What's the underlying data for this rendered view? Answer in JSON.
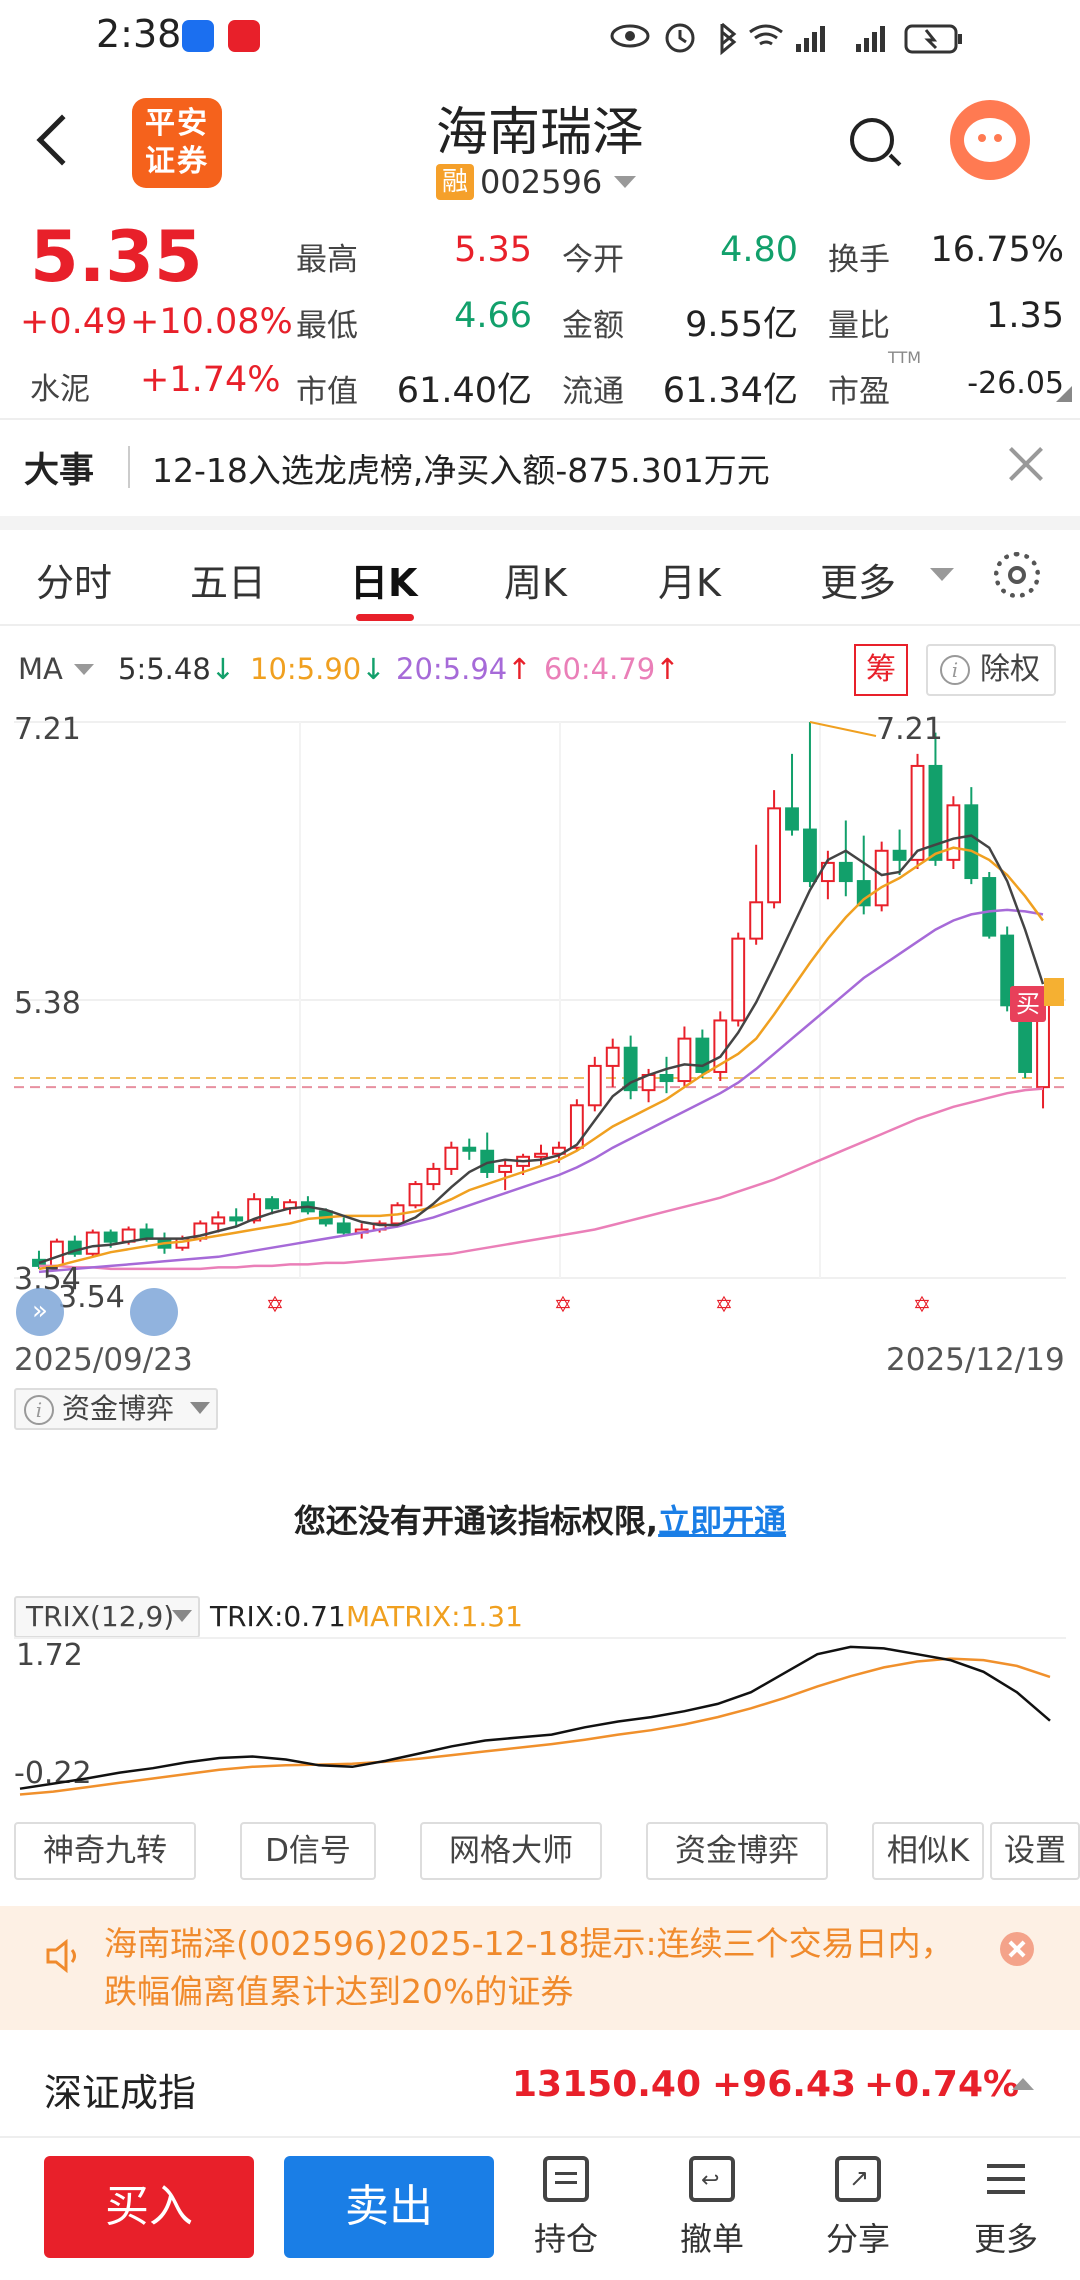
{
  "status_bar": {
    "time": "2:38"
  },
  "header": {
    "logo_line1": "平安",
    "logo_line2": "证券",
    "stock_name": "海南瑞泽",
    "margin_badge": "融",
    "stock_code": "002596"
  },
  "quote": {
    "price": "5.35",
    "change": "+0.49",
    "change_pct": "+10.08%",
    "sector_name": "水泥",
    "sector_chg": "+1.74%",
    "fields": [
      {
        "label": "最高",
        "value": "5.35",
        "color": "#e8202a"
      },
      {
        "label": "今开",
        "value": "4.80",
        "color": "#12a06b"
      },
      {
        "label": "换手",
        "value": "16.75%",
        "color": "#222222"
      },
      {
        "label": "最低",
        "value": "4.66",
        "color": "#12a06b"
      },
      {
        "label": "金额",
        "value": "9.55亿",
        "color": "#222222"
      },
      {
        "label": "量比",
        "value": "1.35",
        "color": "#222222"
      },
      {
        "label": "市值",
        "value": "61.40亿",
        "color": "#222222"
      },
      {
        "label": "流通",
        "value": "61.34亿",
        "color": "#222222"
      },
      {
        "label": "市盈",
        "value": "-26.05",
        "color": "#222222"
      }
    ],
    "pe_superscript": "TTM"
  },
  "news": {
    "tag": "大事",
    "text": "12-18入选龙虎榜,净买入额-875.301万元"
  },
  "tabs": [
    "分时",
    "五日",
    "日K",
    "周K",
    "月K",
    "更多"
  ],
  "active_tab": "日K",
  "ma_legend": {
    "label": "MA",
    "ma5": "5:5.48",
    "ma10": "10:5.90",
    "ma20": "20:5.94",
    "ma60": "60:4.79",
    "ma5_dir": "↓",
    "ma10_dir": "↓",
    "ma20_dir": "↑",
    "ma60_dir": "↑",
    "chou_label": "筹",
    "chuquan_label": "除权"
  },
  "kline": {
    "y_max_label": "7.21",
    "y_mid_label": "5.38",
    "y_min_label": "3.54",
    "high_marker": "7.21",
    "low_marker": "3.54",
    "buy_marker": "买",
    "date_start": "2025/09/23",
    "date_end": "2025/12/19"
  },
  "capital_indicator": {
    "selector": "资金博弈",
    "perm_text": "您还没有开通该指标权限,",
    "perm_link": "立即开通"
  },
  "trix": {
    "selector": "TRIX(12,9)",
    "trix_value": "TRIX:0.71",
    "matrix_value": "MATRIX:1.31",
    "y_max": "1.72",
    "y_min": "-0.22"
  },
  "feature_buttons": [
    "神奇九转",
    "D信号",
    "网格大师",
    "资金博弈",
    "相似K",
    "设置"
  ],
  "alert": {
    "text": "海南瑞泽(002596)2025-12-18提示:连续三个交易日内，跌幅偏离值累计达到20%的证券"
  },
  "index_bar": {
    "name": "深证成指",
    "value": "13150.40",
    "change": "+96.43",
    "change_pct": "+0.74%"
  },
  "bottom_nav": {
    "buy": "买入",
    "sell": "卖出",
    "items": [
      "持仓",
      "撤单",
      "分享",
      "更多"
    ]
  },
  "chart_data": {
    "type": "candlestick",
    "x_range": [
      "2025/09/23",
      "2025/12/19"
    ],
    "ylim": [
      3.54,
      7.21
    ],
    "y_ticks": [
      7.21,
      5.38,
      3.54
    ],
    "candles": [
      [
        3.66,
        3.72,
        3.6,
        3.62
      ],
      [
        3.62,
        3.8,
        3.6,
        3.78
      ],
      [
        3.78,
        3.82,
        3.68,
        3.7
      ],
      [
        3.7,
        3.86,
        3.68,
        3.84
      ],
      [
        3.84,
        3.86,
        3.74,
        3.78
      ],
      [
        3.78,
        3.88,
        3.76,
        3.86
      ],
      [
        3.86,
        3.9,
        3.78,
        3.8
      ],
      [
        3.8,
        3.84,
        3.7,
        3.74
      ],
      [
        3.74,
        3.82,
        3.72,
        3.8
      ],
      [
        3.8,
        3.92,
        3.78,
        3.9
      ],
      [
        3.9,
        3.98,
        3.84,
        3.94
      ],
      [
        3.94,
        4.0,
        3.88,
        3.92
      ],
      [
        3.92,
        4.1,
        3.9,
        4.06
      ],
      [
        4.06,
        4.08,
        3.96,
        4.0
      ],
      [
        4.0,
        4.06,
        3.96,
        4.04
      ],
      [
        4.04,
        4.08,
        3.96,
        3.98
      ],
      [
        3.98,
        4.0,
        3.88,
        3.9
      ],
      [
        3.9,
        3.94,
        3.82,
        3.84
      ],
      [
        3.84,
        3.9,
        3.8,
        3.86
      ],
      [
        3.86,
        3.92,
        3.84,
        3.9
      ],
      [
        3.9,
        4.04,
        3.88,
        4.02
      ],
      [
        4.02,
        4.18,
        4.0,
        4.16
      ],
      [
        4.16,
        4.3,
        4.12,
        4.26
      ],
      [
        4.26,
        4.44,
        4.22,
        4.4
      ],
      [
        4.4,
        4.46,
        4.32,
        4.38
      ],
      [
        4.38,
        4.5,
        4.2,
        4.24
      ],
      [
        4.24,
        4.32,
        4.12,
        4.28
      ],
      [
        4.28,
        4.36,
        4.22,
        4.34
      ],
      [
        4.34,
        4.42,
        4.28,
        4.36
      ],
      [
        4.36,
        4.44,
        4.3,
        4.4
      ],
      [
        4.4,
        4.72,
        4.38,
        4.68
      ],
      [
        4.68,
        5.0,
        4.64,
        4.94
      ],
      [
        4.94,
        5.12,
        4.8,
        5.06
      ],
      [
        5.06,
        5.14,
        4.72,
        4.78
      ],
      [
        4.78,
        4.92,
        4.7,
        4.88
      ],
      [
        4.88,
        5.0,
        4.76,
        4.84
      ],
      [
        4.84,
        5.2,
        4.8,
        5.12
      ],
      [
        5.12,
        5.18,
        4.86,
        4.9
      ],
      [
        4.9,
        5.3,
        4.84,
        5.24
      ],
      [
        5.24,
        5.82,
        5.2,
        5.78
      ],
      [
        5.78,
        6.4,
        5.74,
        6.02
      ],
      [
        6.02,
        6.76,
        5.98,
        6.64
      ],
      [
        6.64,
        7.0,
        6.46,
        6.5
      ],
      [
        6.5,
        7.21,
        6.12,
        6.16
      ],
      [
        6.16,
        6.36,
        6.04,
        6.28
      ],
      [
        6.28,
        6.56,
        6.06,
        6.16
      ],
      [
        6.16,
        6.46,
        5.94,
        6.0
      ],
      [
        6.0,
        6.42,
        5.96,
        6.36
      ],
      [
        6.36,
        6.5,
        6.2,
        6.3
      ],
      [
        6.3,
        7.0,
        6.24,
        6.92
      ],
      [
        6.92,
        7.14,
        6.26,
        6.3
      ],
      [
        6.3,
        6.72,
        6.24,
        6.66
      ],
      [
        6.66,
        6.78,
        6.14,
        6.18
      ],
      [
        6.18,
        6.22,
        5.78,
        5.8
      ],
      [
        5.8,
        5.86,
        5.3,
        5.34
      ],
      [
        5.34,
        5.4,
        4.86,
        4.9
      ],
      [
        4.8,
        5.35,
        4.66,
        5.35
      ]
    ],
    "ma5": [
      3.64,
      3.68,
      3.72,
      3.75,
      3.76,
      3.78,
      3.8,
      3.8,
      3.8,
      3.82,
      3.85,
      3.88,
      3.93,
      3.97,
      4.0,
      4.01,
      3.99,
      3.95,
      3.91,
      3.89,
      3.89,
      3.94,
      4.03,
      4.14,
      4.24,
      4.3,
      4.32,
      4.31,
      4.32,
      4.35,
      4.42,
      4.58,
      4.74,
      4.83,
      4.88,
      4.92,
      4.95,
      4.94,
      5.0,
      5.16,
      5.36,
      5.6,
      5.85,
      6.1,
      6.3,
      6.36,
      6.28,
      6.2,
      6.22,
      6.36,
      6.4,
      6.44,
      6.46,
      6.38,
      6.16,
      5.84,
      5.48
    ],
    "ma10": [
      3.6,
      3.62,
      3.65,
      3.68,
      3.71,
      3.73,
      3.75,
      3.77,
      3.78,
      3.8,
      3.82,
      3.84,
      3.86,
      3.88,
      3.9,
      3.93,
      3.94,
      3.95,
      3.95,
      3.95,
      3.96,
      3.98,
      4.01,
      4.06,
      4.12,
      4.16,
      4.2,
      4.24,
      4.28,
      4.32,
      4.38,
      4.46,
      4.54,
      4.6,
      4.66,
      4.72,
      4.8,
      4.88,
      4.95,
      5.02,
      5.12,
      5.28,
      5.45,
      5.62,
      5.78,
      5.92,
      6.04,
      6.12,
      6.18,
      6.26,
      6.34,
      6.38,
      6.36,
      6.3,
      6.2,
      6.06,
      5.9
    ],
    "ma20": [
      3.58,
      3.59,
      3.6,
      3.61,
      3.62,
      3.63,
      3.64,
      3.65,
      3.66,
      3.67,
      3.68,
      3.7,
      3.72,
      3.74,
      3.76,
      3.78,
      3.8,
      3.82,
      3.84,
      3.86,
      3.88,
      3.91,
      3.94,
      3.98,
      4.02,
      4.06,
      4.1,
      4.14,
      4.18,
      4.22,
      4.27,
      4.33,
      4.4,
      4.46,
      4.52,
      4.58,
      4.64,
      4.7,
      4.76,
      4.83,
      4.92,
      5.02,
      5.12,
      5.22,
      5.32,
      5.42,
      5.52,
      5.6,
      5.68,
      5.76,
      5.84,
      5.9,
      5.94,
      5.96,
      5.97,
      5.96,
      5.94
    ],
    "ma60": [
      3.62,
      3.62,
      3.61,
      3.61,
      3.6,
      3.6,
      3.6,
      3.6,
      3.6,
      3.6,
      3.61,
      3.61,
      3.62,
      3.62,
      3.63,
      3.63,
      3.64,
      3.64,
      3.65,
      3.66,
      3.67,
      3.68,
      3.69,
      3.7,
      3.72,
      3.74,
      3.76,
      3.78,
      3.8,
      3.82,
      3.84,
      3.86,
      3.89,
      3.92,
      3.95,
      3.98,
      4.01,
      4.04,
      4.07,
      4.11,
      4.15,
      4.19,
      4.24,
      4.29,
      4.34,
      4.39,
      4.44,
      4.49,
      4.54,
      4.59,
      4.63,
      4.67,
      4.7,
      4.73,
      4.76,
      4.78,
      4.79
    ],
    "dashed_levels": [
      4.86,
      4.8
    ],
    "trix_series": {
      "trix": [
        -0.22,
        -0.15,
        -0.08,
        0.0,
        0.06,
        0.14,
        0.2,
        0.22,
        0.18,
        0.1,
        0.08,
        0.16,
        0.26,
        0.36,
        0.44,
        0.48,
        0.52,
        0.62,
        0.7,
        0.76,
        0.84,
        0.94,
        1.1,
        1.36,
        1.62,
        1.72,
        1.7,
        1.62,
        1.54,
        1.38,
        1.1,
        0.71
      ],
      "matrix": [
        -0.3,
        -0.26,
        -0.2,
        -0.14,
        -0.08,
        -0.02,
        0.04,
        0.08,
        0.1,
        0.11,
        0.12,
        0.15,
        0.19,
        0.24,
        0.29,
        0.34,
        0.39,
        0.45,
        0.52,
        0.58,
        0.66,
        0.76,
        0.88,
        1.02,
        1.18,
        1.32,
        1.44,
        1.52,
        1.56,
        1.54,
        1.46,
        1.31
      ]
    }
  }
}
